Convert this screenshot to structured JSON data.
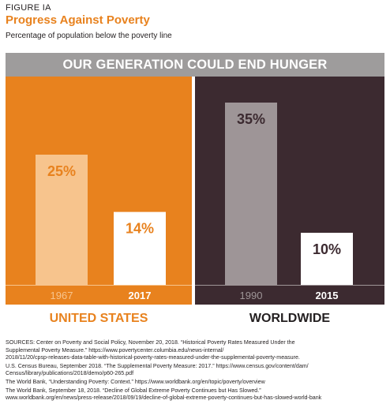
{
  "figure": {
    "label": "FIGURE IA",
    "title": "Progress Against Poverty",
    "subtitle": "Percentage of population below the poverty line",
    "banner": "OUR GENERATION COULD END HUNGER"
  },
  "colors": {
    "orange": "#e8821e",
    "orange_light_bar": "#f7c48d",
    "dark_panel": "#3c2a30",
    "gray_bar": "#9e9597",
    "banner_gray": "#9e9c9c",
    "white": "#ffffff"
  },
  "chart_data": [
    {
      "type": "bar",
      "region": "UNITED STATES",
      "categories": [
        "1967",
        "2017"
      ],
      "values": [
        25,
        14
      ],
      "value_labels": [
        "25%",
        "14%"
      ],
      "ylim": [
        0,
        40
      ],
      "grid": false
    },
    {
      "type": "bar",
      "region": "WORLDWIDE",
      "categories": [
        "1990",
        "2015"
      ],
      "values": [
        35,
        10
      ],
      "value_labels": [
        "35%",
        "10%"
      ],
      "ylim": [
        0,
        40
      ],
      "grid": false
    }
  ],
  "sources": [
    "SOURCES: Center on Poverty and Social Policy, November 20, 2018. “Historical Poverty Rates Measured Under the",
    "Supplemental Poverty Measure.” https://www.povertycenter.columbia.edu/news-internal/",
    "2018/11/20/cpsp-releases-data-table-with-historical-poverty-rates-measured-under-the-supplemental-poverty-measure.",
    "U.S. Census Bureau, September 2018. “The Supplemental Poverty Measure: 2017.”  https://www.census.gov/content/dam/",
    "Census/library/publications/2018/demo/p60-265.pdf",
    "The World Bank, “Understanding Poverty: Context.” https://www.worldbank.org/en/topic/poverty/overview",
    "The World Bank, September 18, 2018. “Decline of Global Extreme Poverty Continues but Has Slowed.”",
    "www.worldbank.org/en/news/press-release/2018/09/19/decline-of-global-extreme-poverty-continues-but-has-slowed-world-bank"
  ]
}
